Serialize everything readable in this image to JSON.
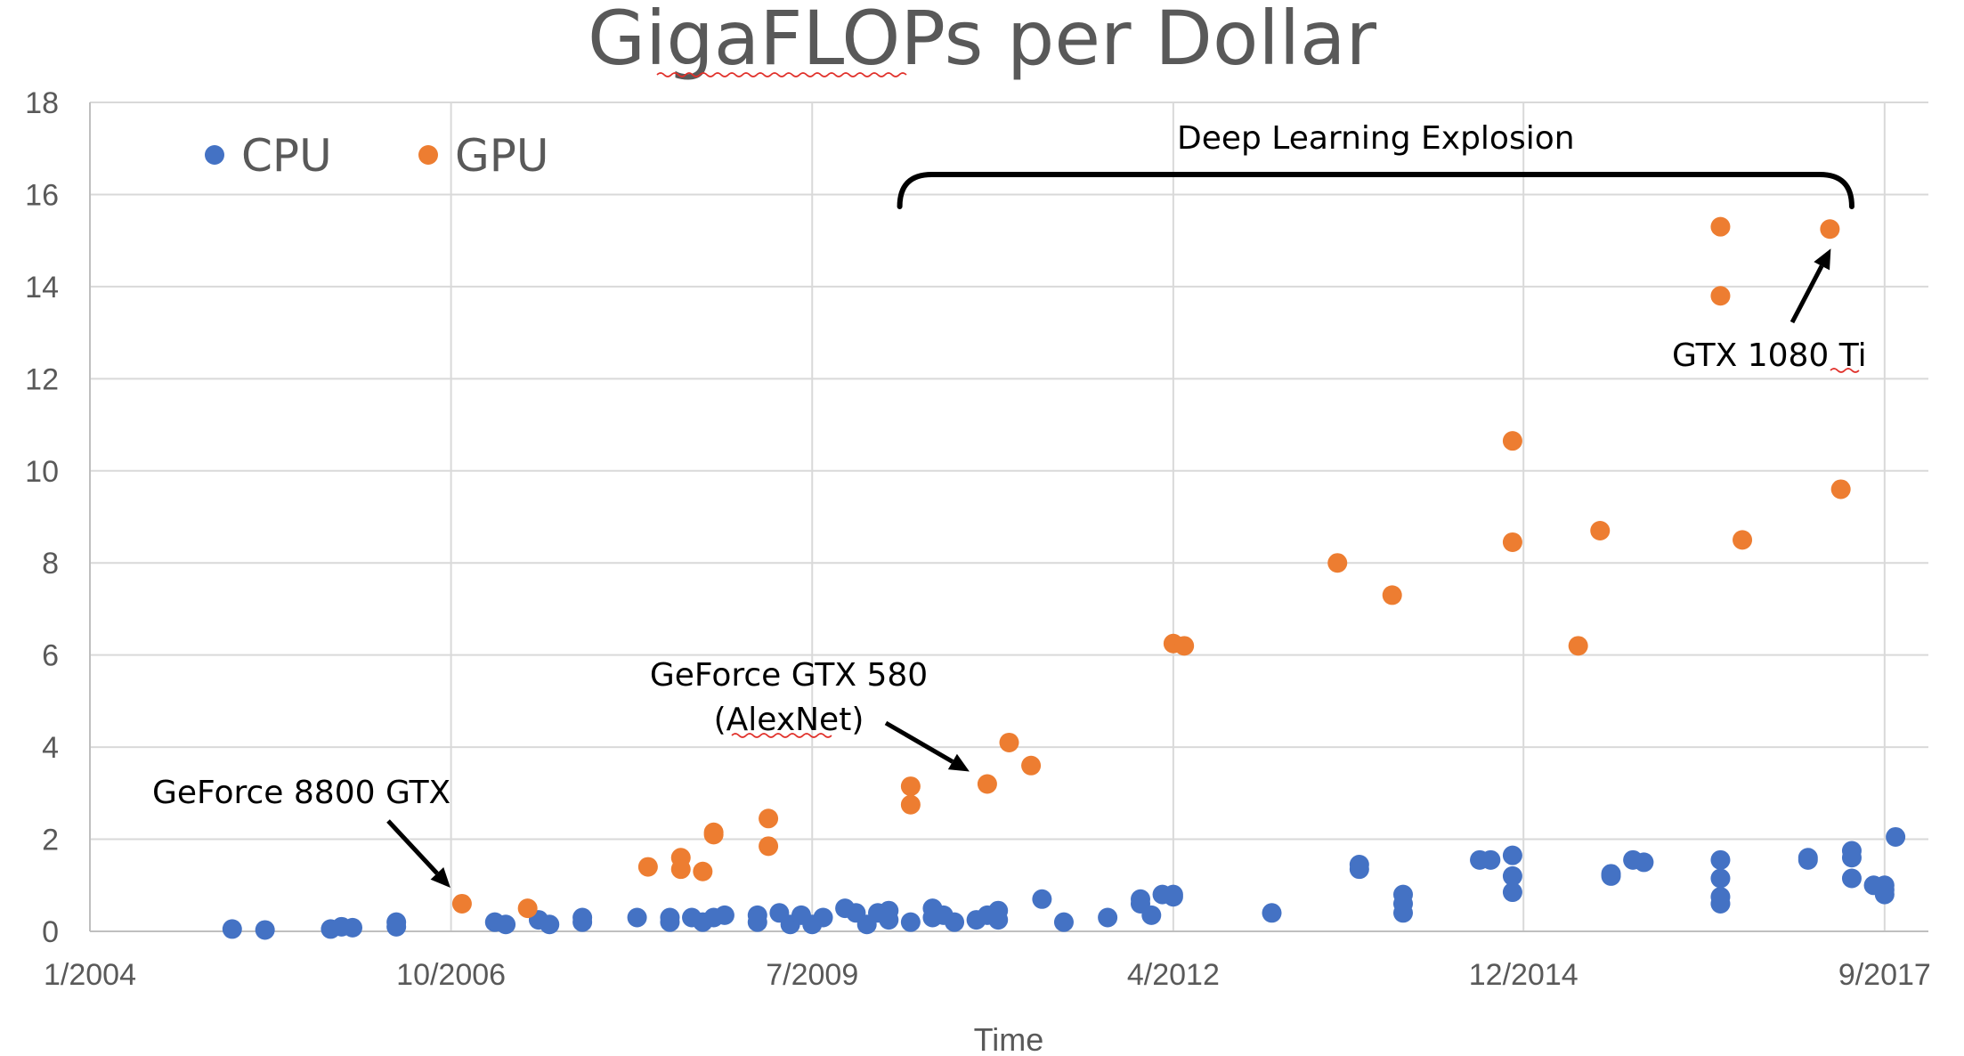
{
  "chart_data": {
    "type": "scatter",
    "title": "GigaFLOPs per Dollar",
    "xlabel": "Time",
    "ylabel": "",
    "x_scale": "date",
    "xlim": [
      "2004-01",
      "2018-01"
    ],
    "ylim": [
      0,
      18
    ],
    "y_ticks": [
      0,
      2,
      4,
      6,
      8,
      10,
      12,
      14,
      16,
      18
    ],
    "x_tick_labels": [
      "1/2004",
      "10/2006",
      "7/2009",
      "4/2012",
      "12/2014",
      "9/2017"
    ],
    "x_tick_dates": [
      "2004-01",
      "2006-10",
      "2009-07",
      "2012-04",
      "2014-12",
      "2017-09"
    ],
    "grid": true,
    "legend_position": "top-left",
    "series": [
      {
        "name": "CPU",
        "color": "#4472C4",
        "points": [
          [
            "2005-02",
            0.05
          ],
          [
            "2005-05",
            0.03
          ],
          [
            "2005-11",
            0.05
          ],
          [
            "2005-12",
            0.1
          ],
          [
            "2006-01",
            0.08
          ],
          [
            "2006-05",
            0.2
          ],
          [
            "2006-05",
            0.1
          ],
          [
            "2007-02",
            0.2
          ],
          [
            "2007-03",
            0.15
          ],
          [
            "2007-06",
            0.25
          ],
          [
            "2007-07",
            0.15
          ],
          [
            "2007-10",
            0.3
          ],
          [
            "2007-10",
            0.2
          ],
          [
            "2008-03",
            0.3
          ],
          [
            "2008-06",
            0.3
          ],
          [
            "2008-06",
            0.2
          ],
          [
            "2008-08",
            0.3
          ],
          [
            "2008-09",
            0.2
          ],
          [
            "2008-10",
            0.3
          ],
          [
            "2008-11",
            0.35
          ],
          [
            "2009-02",
            0.35
          ],
          [
            "2009-02",
            0.2
          ],
          [
            "2009-04",
            0.4
          ],
          [
            "2009-05",
            0.15
          ],
          [
            "2009-06",
            0.35
          ],
          [
            "2009-07",
            0.15
          ],
          [
            "2009-08",
            0.3
          ],
          [
            "2009-10",
            0.5
          ],
          [
            "2009-11",
            0.4
          ],
          [
            "2009-12",
            0.15
          ],
          [
            "2010-01",
            0.4
          ],
          [
            "2010-02",
            0.45
          ],
          [
            "2010-02",
            0.25
          ],
          [
            "2010-04",
            0.2
          ],
          [
            "2010-06",
            0.3
          ],
          [
            "2010-06",
            0.5
          ],
          [
            "2010-07",
            0.35
          ],
          [
            "2010-08",
            0.2
          ],
          [
            "2010-10",
            0.25
          ],
          [
            "2010-11",
            0.35
          ],
          [
            "2010-12",
            0.45
          ],
          [
            "2010-12",
            0.25
          ],
          [
            "2011-04",
            0.7
          ],
          [
            "2011-06",
            0.2
          ],
          [
            "2011-10",
            0.3
          ],
          [
            "2012-01",
            0.7
          ],
          [
            "2012-01",
            0.6
          ],
          [
            "2012-02",
            0.35
          ],
          [
            "2012-03",
            0.8
          ],
          [
            "2012-04",
            0.8
          ],
          [
            "2012-04",
            0.75
          ],
          [
            "2013-01",
            0.4
          ],
          [
            "2013-09",
            1.45
          ],
          [
            "2013-09",
            1.35
          ],
          [
            "2014-01",
            0.8
          ],
          [
            "2014-01",
            0.6
          ],
          [
            "2014-01",
            0.4
          ],
          [
            "2014-08",
            1.55
          ],
          [
            "2014-09",
            1.55
          ],
          [
            "2014-11",
            1.65
          ],
          [
            "2014-11",
            1.2
          ],
          [
            "2014-11",
            0.85
          ],
          [
            "2015-08",
            1.25
          ],
          [
            "2015-08",
            1.2
          ],
          [
            "2015-10",
            1.55
          ],
          [
            "2015-11",
            1.5
          ],
          [
            "2016-06",
            1.55
          ],
          [
            "2016-06",
            1.15
          ],
          [
            "2016-06",
            0.75
          ],
          [
            "2016-06",
            0.6
          ],
          [
            "2017-02",
            1.6
          ],
          [
            "2017-02",
            1.55
          ],
          [
            "2017-06",
            1.75
          ],
          [
            "2017-06",
            1.6
          ],
          [
            "2017-06",
            1.15
          ],
          [
            "2017-08",
            1.0
          ],
          [
            "2017-09",
            1.0
          ],
          [
            "2017-09",
            0.9
          ],
          [
            "2017-09",
            0.8
          ],
          [
            "2017-10",
            2.05
          ]
        ]
      },
      {
        "name": "GPU",
        "color": "#ED7D31",
        "points": [
          [
            "2006-11",
            0.6
          ],
          [
            "2007-05",
            0.5
          ],
          [
            "2008-04",
            1.4
          ],
          [
            "2008-07",
            1.6
          ],
          [
            "2008-07",
            1.35
          ],
          [
            "2008-09",
            1.3
          ],
          [
            "2008-10",
            2.15
          ],
          [
            "2008-10",
            2.1
          ],
          [
            "2009-03",
            2.45
          ],
          [
            "2009-03",
            1.85
          ],
          [
            "2010-04",
            3.15
          ],
          [
            "2010-04",
            2.75
          ],
          [
            "2010-11",
            3.2
          ],
          [
            "2011-01",
            4.1
          ],
          [
            "2011-03",
            3.6
          ],
          [
            "2012-04",
            6.25
          ],
          [
            "2012-05",
            6.2
          ],
          [
            "2013-07",
            8.0
          ],
          [
            "2013-12",
            7.3
          ],
          [
            "2014-11",
            10.65
          ],
          [
            "2014-11",
            8.45
          ],
          [
            "2015-05",
            6.2
          ],
          [
            "2015-07",
            8.7
          ],
          [
            "2016-06",
            15.3
          ],
          [
            "2016-06",
            13.8
          ],
          [
            "2016-08",
            8.5
          ],
          [
            "2017-04",
            15.25
          ],
          [
            "2017-05",
            9.6
          ]
        ]
      }
    ],
    "annotations": [
      {
        "text": "GeForce 8800 GTX",
        "point": [
          "2006-11",
          0.6
        ]
      },
      {
        "line1": "GeForce GTX 580",
        "line2": "(AlexNet)",
        "point": [
          "2010-11",
          3.2
        ]
      },
      {
        "text": "GTX 1080 Ti",
        "point": [
          "2017-04",
          15.25
        ]
      },
      {
        "text": "Deep Learning Explosion",
        "range": [
          "2010-03",
          "2017-06"
        ]
      }
    ]
  }
}
